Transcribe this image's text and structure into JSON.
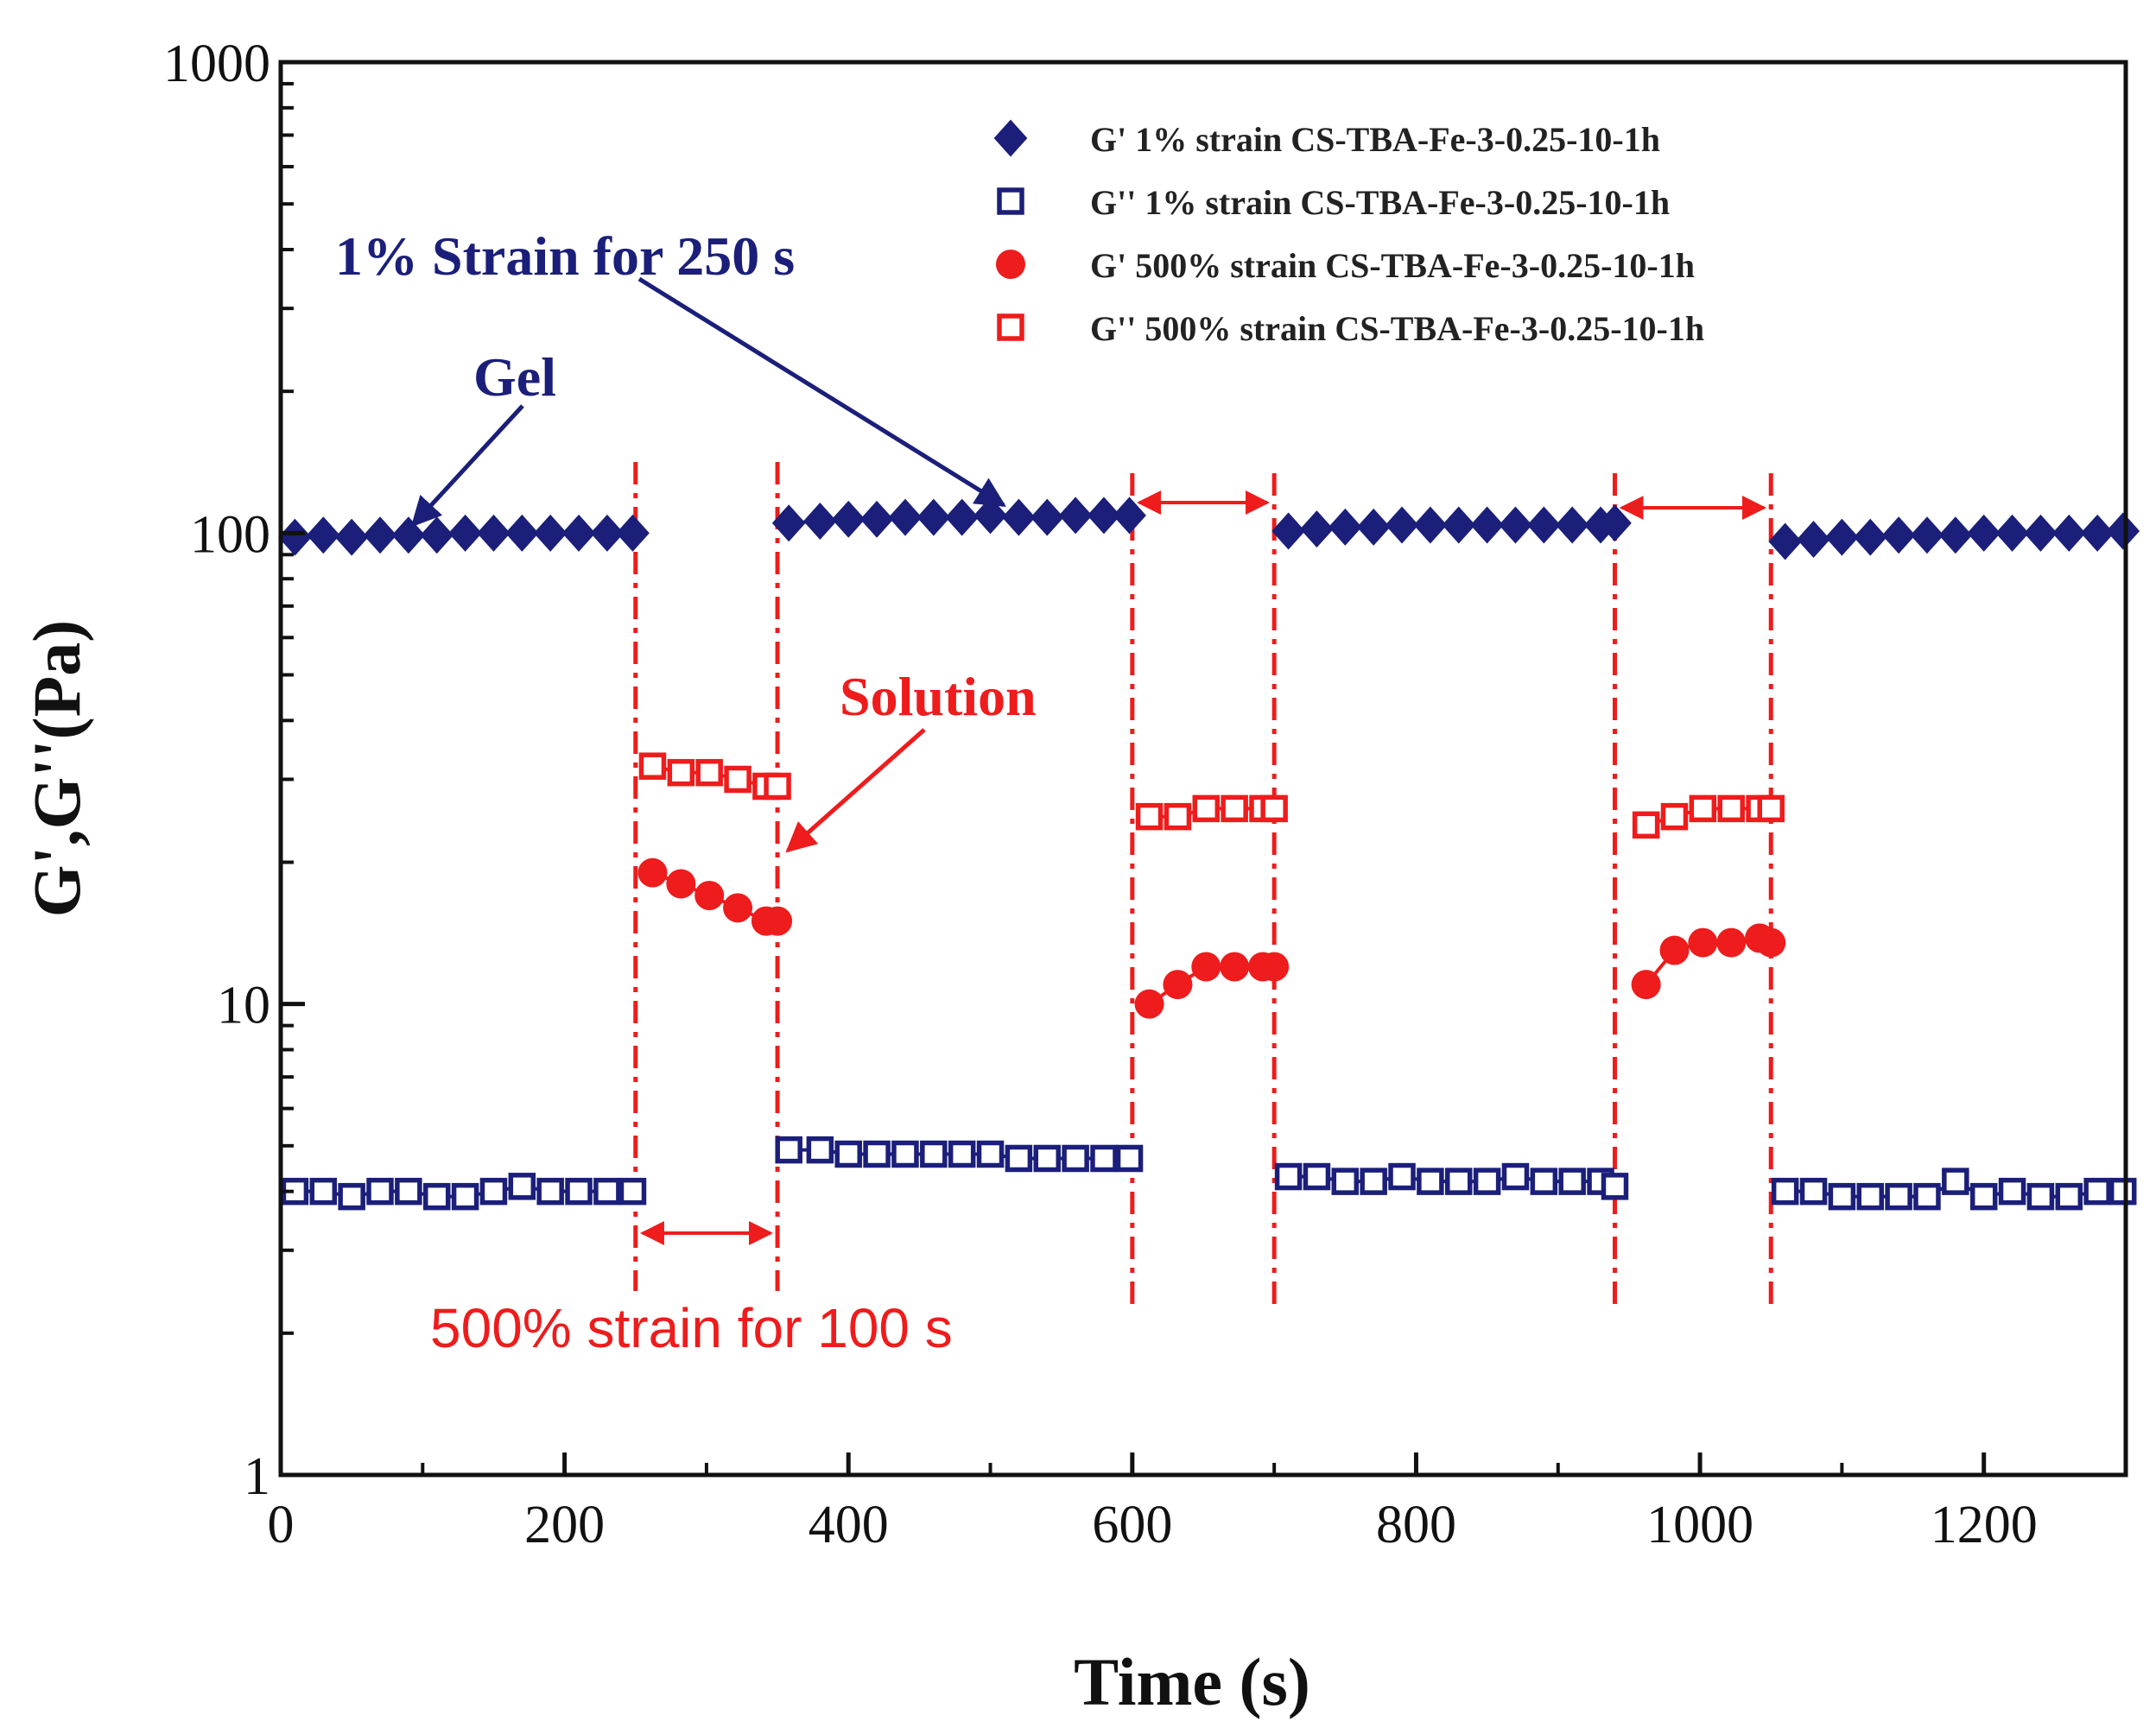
{
  "chart_data": {
    "type": "scatter",
    "title": "",
    "xlabel": "Time (s)",
    "ylabel": "G',G''(Pa)",
    "xlim": [
      0,
      1300
    ],
    "ylim": [
      1,
      1000
    ],
    "yscale": "log",
    "xticks": [
      "0",
      "200",
      "400",
      "600",
      "800",
      "1000",
      "1200"
    ],
    "xtick_values": [
      0,
      200,
      400,
      600,
      800,
      1000,
      1200
    ],
    "yticks": [
      "1",
      "10",
      "100",
      "1000"
    ],
    "ytick_values": [
      1,
      10,
      100,
      1000
    ],
    "colors": {
      "blue": "#1b1f7a",
      "red": "#ee1c1c"
    },
    "series": [
      {
        "name": "G'  1% strain CS-TBA-Fe-3-0.25-10-1h",
        "color": "#1b1f7a",
        "marker": "diamond-filled",
        "segments": [
          {
            "x": [
              10,
              30,
              50,
              70,
              90,
              110,
              130,
              150,
              170,
              190,
              210,
              230,
              248
            ],
            "y": [
              98,
              99,
              98,
              99,
              99,
              99,
              100,
              100,
              100,
              100,
              100,
              100,
              100
            ]
          },
          {
            "x": [
              358,
              380,
              400,
              420,
              440,
              460,
              480,
              500,
              520,
              540,
              560,
              580,
              598
            ],
            "y": [
              105,
              106,
              107,
              107,
              108,
              108,
              108,
              109,
              108,
              108,
              109,
              109,
              109
            ]
          },
          {
            "x": [
              710,
              730,
              750,
              770,
              790,
              810,
              830,
              850,
              870,
              890,
              910,
              930,
              940
            ],
            "y": [
              101,
              102,
              103,
              103,
              104,
              104,
              104,
              104,
              104,
              104,
              104,
              104,
              105
            ]
          },
          {
            "x": [
              1060,
              1080,
              1100,
              1120,
              1140,
              1160,
              1180,
              1200,
              1220,
              1240,
              1260,
              1280,
              1298
            ],
            "y": [
              96,
              97,
              98,
              98,
              99,
              99,
              99,
              100,
              100,
              100,
              100,
              100,
              101
            ]
          }
        ]
      },
      {
        "name": "G'' 1% strain CS-TBA-Fe-3-0.25-10-1h",
        "color": "#1b1f7a",
        "marker": "square-open",
        "segments": [
          {
            "x": [
              10,
              30,
              50,
              70,
              90,
              110,
              130,
              150,
              170,
              190,
              210,
              230,
              248
            ],
            "y": [
              4.0,
              4.0,
              3.9,
              4.0,
              4.0,
              3.9,
              3.9,
              4.0,
              4.1,
              4.0,
              4.0,
              4.0,
              4.0
            ]
          },
          {
            "x": [
              358,
              380,
              400,
              420,
              440,
              460,
              480,
              500,
              520,
              540,
              560,
              580,
              598
            ],
            "y": [
              4.9,
              4.9,
              4.8,
              4.8,
              4.8,
              4.8,
              4.8,
              4.8,
              4.7,
              4.7,
              4.7,
              4.7,
              4.7
            ]
          },
          {
            "x": [
              710,
              730,
              750,
              770,
              790,
              810,
              830,
              850,
              870,
              890,
              910,
              930,
              940
            ],
            "y": [
              4.3,
              4.3,
              4.2,
              4.2,
              4.3,
              4.2,
              4.2,
              4.2,
              4.3,
              4.2,
              4.2,
              4.2,
              4.1
            ]
          },
          {
            "x": [
              1060,
              1080,
              1100,
              1120,
              1140,
              1160,
              1180,
              1200,
              1220,
              1240,
              1260,
              1280,
              1298
            ],
            "y": [
              4.0,
              4.0,
              3.9,
              3.9,
              3.9,
              3.9,
              4.2,
              3.9,
              4.0,
              3.9,
              3.9,
              4.0,
              4.0
            ]
          }
        ]
      },
      {
        "name": "G'  500% strain CS-TBA-Fe-3-0.25-10-1h",
        "color": "#ee1c1c",
        "marker": "circle-filled",
        "segments": [
          {
            "x": [
              262,
              282,
              302,
              322,
              342,
              350
            ],
            "y": [
              19,
              18,
              17,
              16,
              15,
              15
            ]
          },
          {
            "x": [
              612,
              632,
              652,
              672,
              692,
              700
            ],
            "y": [
              10,
              11,
              12,
              12,
              12,
              12
            ]
          },
          {
            "x": [
              962,
              982,
              1002,
              1022,
              1042,
              1050
            ],
            "y": [
              11,
              13,
              13.5,
              13.5,
              13.8,
              13.5
            ]
          }
        ]
      },
      {
        "name": "G'' 500% strain CS-TBA-Fe-3-0.25-10-1h",
        "color": "#ee1c1c",
        "marker": "square-open",
        "segments": [
          {
            "x": [
              262,
              282,
              302,
              322,
              342,
              350
            ],
            "y": [
              32,
              31,
              31,
              30,
              29,
              29
            ]
          },
          {
            "x": [
              612,
              632,
              652,
              672,
              692,
              700
            ],
            "y": [
              25,
              25,
              26,
              26,
              26,
              26
            ]
          },
          {
            "x": [
              962,
              982,
              1002,
              1022,
              1042,
              1050
            ],
            "y": [
              24,
              25,
              26,
              26,
              26,
              26
            ]
          }
        ]
      }
    ],
    "vlines": [
      250,
      350,
      600,
      700,
      940,
      1050
    ],
    "legend_position": "top-right",
    "annotations": {
      "gel": "Gel",
      "strain_1": "1% Strain for 250 s",
      "solution": "Solution",
      "strain_500": "500% strain for 100 s"
    }
  }
}
